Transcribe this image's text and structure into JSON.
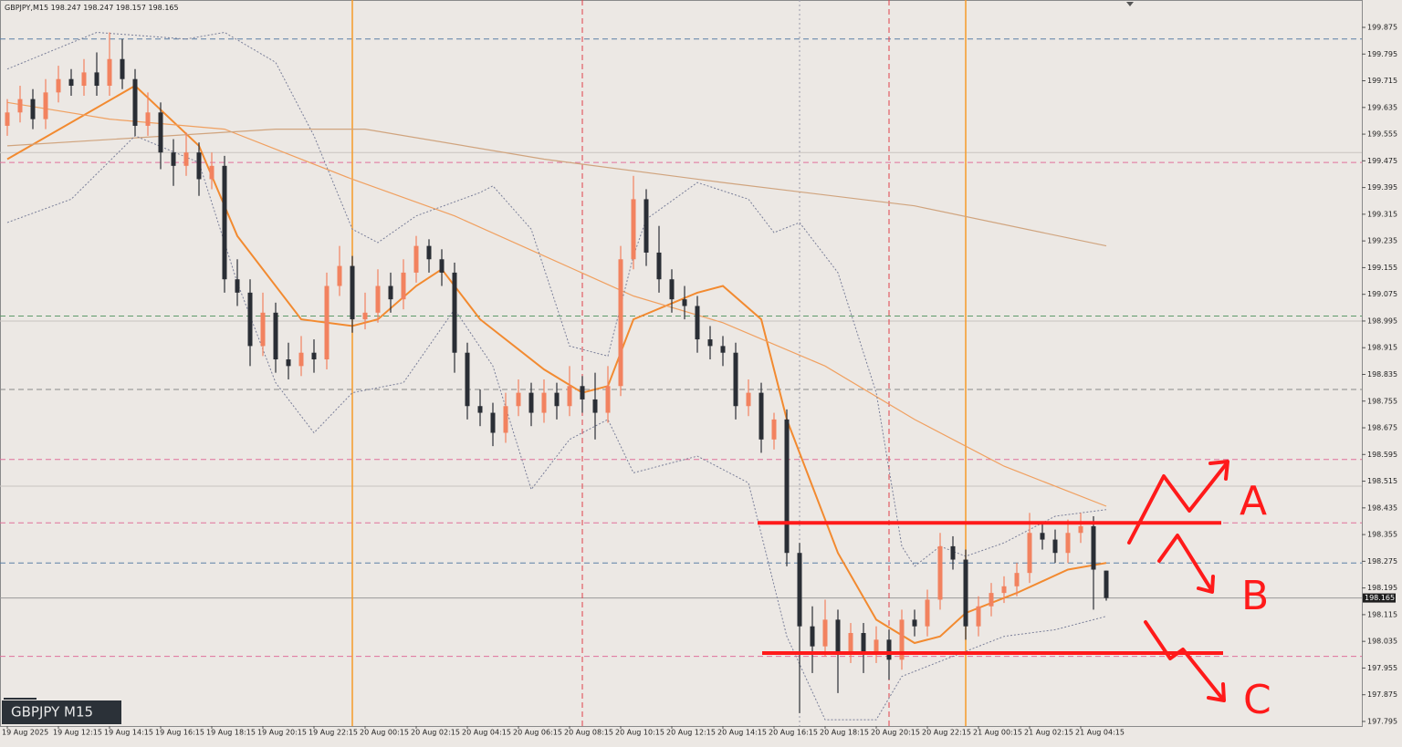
{
  "chart_data": {
    "type": "candlestick",
    "symbol": "GBPJPY,M15",
    "label": "GBPJPY M15",
    "ylim": [
      197.784,
      199.957
    ],
    "yticks": [
      197.795,
      197.875,
      197.955,
      198.035,
      198.115,
      198.195,
      198.275,
      198.355,
      198.435,
      198.515,
      198.595,
      198.675,
      198.755,
      198.835,
      198.915,
      198.995,
      199.075,
      199.155,
      199.235,
      199.315,
      199.395,
      199.475,
      199.555,
      199.635,
      199.715,
      199.795,
      199.875
    ],
    "x": [
      "19 Aug 2025",
      "19 Aug 12:15",
      "19 Aug 14:15",
      "19 Aug 16:15",
      "19 Aug 18:15",
      "19 Aug 20:15",
      "19 Aug 22:15",
      "20 Aug 00:15",
      "20 Aug 02:15",
      "20 Aug 04:15",
      "20 Aug 06:15",
      "20 Aug 08:15",
      "20 Aug 10:15",
      "20 Aug 12:15",
      "20 Aug 14:15",
      "20 Aug 16:15",
      "20 Aug 18:15",
      "20 Aug 20:15",
      "20 Aug 22:15",
      "21 Aug 00:15",
      "21 Aug 02:15",
      "21 Aug 04:15"
    ],
    "up_color": "#f2825f",
    "down_color": "#2a2e35",
    "candles": [
      [
        199.58,
        199.66,
        199.55,
        199.62
      ],
      [
        199.62,
        199.7,
        199.59,
        199.66
      ],
      [
        199.66,
        199.69,
        199.57,
        199.6
      ],
      [
        199.6,
        199.72,
        199.57,
        199.68
      ],
      [
        199.68,
        199.76,
        199.65,
        199.72
      ],
      [
        199.72,
        199.75,
        199.67,
        199.7
      ],
      [
        199.7,
        199.78,
        199.67,
        199.74
      ],
      [
        199.74,
        199.8,
        199.67,
        199.7
      ],
      [
        199.7,
        199.86,
        199.67,
        199.78
      ],
      [
        199.78,
        199.84,
        199.69,
        199.72
      ],
      [
        199.72,
        199.75,
        199.55,
        199.58
      ],
      [
        199.58,
        199.68,
        199.55,
        199.62
      ],
      [
        199.62,
        199.65,
        199.45,
        199.5
      ],
      [
        199.5,
        199.54,
        199.4,
        199.46
      ],
      [
        199.46,
        199.56,
        199.43,
        199.5
      ],
      [
        199.5,
        199.53,
        199.37,
        199.42
      ],
      [
        199.42,
        199.5,
        199.39,
        199.46
      ],
      [
        199.46,
        199.49,
        199.08,
        199.12
      ],
      [
        199.12,
        199.18,
        199.04,
        199.08
      ],
      [
        199.08,
        199.12,
        198.86,
        198.92
      ],
      [
        198.92,
        199.08,
        198.89,
        199.02
      ],
      [
        199.02,
        199.05,
        198.84,
        198.88
      ],
      [
        198.88,
        198.93,
        198.82,
        198.86
      ],
      [
        198.86,
        198.95,
        198.83,
        198.9
      ],
      [
        198.9,
        198.94,
        198.84,
        198.88
      ],
      [
        198.88,
        199.14,
        198.85,
        199.1
      ],
      [
        199.1,
        199.22,
        199.07,
        199.16
      ],
      [
        199.16,
        199.19,
        198.96,
        199.0
      ],
      [
        199.0,
        199.08,
        198.97,
        199.02
      ],
      [
        199.02,
        199.15,
        198.99,
        199.1
      ],
      [
        199.1,
        199.14,
        199.02,
        199.06
      ],
      [
        199.06,
        199.18,
        199.03,
        199.14
      ],
      [
        199.14,
        199.25,
        199.11,
        199.22
      ],
      [
        199.22,
        199.24,
        199.14,
        199.18
      ],
      [
        199.18,
        199.21,
        199.1,
        199.14
      ],
      [
        199.14,
        199.17,
        198.84,
        198.9
      ],
      [
        198.9,
        198.93,
        198.7,
        198.74
      ],
      [
        198.74,
        198.79,
        198.68,
        198.72
      ],
      [
        198.72,
        198.75,
        198.62,
        198.66
      ],
      [
        198.66,
        198.78,
        198.63,
        198.74
      ],
      [
        198.74,
        198.82,
        198.71,
        198.78
      ],
      [
        198.78,
        198.81,
        198.68,
        198.72
      ],
      [
        198.72,
        198.82,
        198.69,
        198.78
      ],
      [
        198.78,
        198.81,
        198.7,
        198.74
      ],
      [
        198.74,
        198.86,
        198.71,
        198.8
      ],
      [
        198.8,
        198.83,
        198.72,
        198.76
      ],
      [
        198.76,
        198.84,
        198.64,
        198.72
      ],
      [
        198.72,
        198.86,
        198.69,
        198.8
      ],
      [
        198.8,
        199.22,
        198.77,
        199.18
      ],
      [
        199.18,
        199.43,
        199.15,
        199.36
      ],
      [
        199.36,
        199.39,
        199.16,
        199.2
      ],
      [
        199.2,
        199.28,
        199.08,
        199.12
      ],
      [
        199.12,
        199.15,
        199.02,
        199.06
      ],
      [
        199.06,
        199.1,
        199.0,
        199.04
      ],
      [
        199.04,
        199.07,
        198.9,
        198.94
      ],
      [
        198.94,
        198.98,
        198.88,
        198.92
      ],
      [
        198.92,
        198.95,
        198.86,
        198.9
      ],
      [
        198.9,
        198.93,
        198.7,
        198.74
      ],
      [
        198.74,
        198.82,
        198.71,
        198.78
      ],
      [
        198.78,
        198.81,
        198.6,
        198.64
      ],
      [
        198.64,
        198.72,
        198.61,
        198.7
      ],
      [
        198.7,
        198.73,
        198.26,
        198.3
      ],
      [
        198.3,
        198.33,
        197.82,
        198.08
      ],
      [
        198.08,
        198.14,
        197.94,
        198.02
      ],
      [
        198.02,
        198.16,
        197.99,
        198.1
      ],
      [
        198.1,
        198.13,
        197.88,
        198.0
      ],
      [
        198.0,
        198.09,
        197.97,
        198.06
      ],
      [
        198.06,
        198.09,
        197.94,
        198.0
      ],
      [
        198.0,
        198.08,
        197.97,
        198.04
      ],
      [
        198.04,
        198.07,
        197.92,
        197.98
      ],
      [
        197.98,
        198.13,
        197.95,
        198.1
      ],
      [
        198.1,
        198.13,
        198.05,
        198.08
      ],
      [
        198.08,
        198.19,
        198.05,
        198.16
      ],
      [
        198.16,
        198.36,
        198.13,
        198.32
      ],
      [
        198.32,
        198.35,
        198.25,
        198.28
      ],
      [
        198.28,
        198.31,
        198.04,
        198.08
      ],
      [
        198.08,
        198.17,
        198.05,
        198.14
      ],
      [
        198.14,
        198.21,
        198.11,
        198.18
      ],
      [
        198.18,
        198.23,
        198.15,
        198.2
      ],
      [
        198.2,
        198.27,
        198.17,
        198.24
      ],
      [
        198.24,
        198.42,
        198.21,
        198.36
      ],
      [
        198.36,
        198.39,
        198.31,
        198.34
      ],
      [
        198.34,
        198.37,
        198.27,
        198.3
      ],
      [
        198.3,
        198.4,
        198.27,
        198.36
      ],
      [
        198.36,
        198.42,
        198.33,
        198.38
      ],
      [
        198.38,
        198.41,
        198.13,
        198.25
      ],
      [
        198.247,
        198.247,
        198.157,
        198.165
      ]
    ],
    "lines": [
      {
        "color": "#f28a30",
        "width": 2,
        "dotted": false,
        "x": [
          0,
          10,
          15,
          18,
          23,
          27,
          29,
          32,
          34,
          37,
          42,
          45,
          47,
          49,
          54,
          56,
          59,
          61,
          65,
          68,
          71,
          73,
          75,
          79,
          83,
          86
        ],
        "values": [
          199.48,
          199.7,
          199.52,
          199.25,
          199.0,
          198.98,
          199.0,
          199.1,
          199.15,
          199.0,
          198.85,
          198.78,
          198.8,
          199.0,
          199.08,
          199.1,
          199.0,
          198.7,
          198.3,
          198.1,
          198.03,
          198.05,
          198.12,
          198.18,
          198.25,
          198.27
        ]
      },
      {
        "color": "#f0a060",
        "width": 1.2,
        "dotted": false,
        "x": [
          0,
          8,
          17,
          27,
          35,
          42,
          49,
          56,
          64,
          71,
          78,
          86
        ],
        "values": [
          199.65,
          199.6,
          199.57,
          199.42,
          199.31,
          199.19,
          199.07,
          198.99,
          198.86,
          198.7,
          198.56,
          198.44
        ]
      },
      {
        "color": "#d0a47e",
        "width": 1.2,
        "dotted": false,
        "x": [
          0,
          21,
          28,
          42,
          56,
          71,
          86
        ],
        "values": [
          199.52,
          199.57,
          199.57,
          199.48,
          199.41,
          199.34,
          199.22
        ]
      },
      {
        "color": "#7a7f99",
        "width": 1,
        "dotted": true,
        "x": [
          0,
          7,
          14,
          17,
          21,
          24,
          27,
          29,
          32,
          37,
          38,
          41,
          44,
          47,
          49,
          50,
          54,
          58,
          60,
          62,
          65,
          68,
          70,
          71,
          73,
          75,
          78,
          82,
          86
        ],
        "values": [
          199.75,
          199.86,
          199.84,
          199.86,
          199.77,
          199.55,
          199.27,
          199.23,
          199.31,
          199.38,
          199.4,
          199.27,
          198.92,
          198.89,
          199.19,
          199.3,
          199.41,
          199.36,
          199.26,
          199.29,
          199.14,
          198.78,
          198.32,
          198.26,
          198.32,
          198.29,
          198.33,
          198.41,
          198.43
        ]
      },
      {
        "color": "#7a7f99",
        "width": 1,
        "dotted": true,
        "x": [
          0,
          5,
          10,
          15,
          18,
          21,
          24,
          27,
          31,
          35,
          38,
          41,
          44,
          47,
          49,
          54,
          58,
          61,
          64,
          68,
          70,
          74,
          78,
          82,
          86
        ],
        "values": [
          199.29,
          199.36,
          199.55,
          199.47,
          199.11,
          198.81,
          198.66,
          198.78,
          198.81,
          199.03,
          198.86,
          198.49,
          198.64,
          198.7,
          198.54,
          198.59,
          198.51,
          198.05,
          197.8,
          197.8,
          197.93,
          197.99,
          198.05,
          198.07,
          198.11
        ]
      }
    ],
    "levels": [
      {
        "value": 199.84,
        "color": "#5b7fa6",
        "dashed": true
      },
      {
        "value": 199.5,
        "color": "#c9c4c0",
        "dashed": false
      },
      {
        "value": 199.47,
        "color": "#e0709a",
        "dashed": true
      },
      {
        "value": 199.01,
        "color": "#5d9a6a",
        "dashed": true
      },
      {
        "value": 198.995,
        "color": "#c9c4c0",
        "dashed": false
      },
      {
        "value": 198.79,
        "color": "#8a8a8a",
        "dashed": true
      },
      {
        "value": 198.58,
        "color": "#e0709a",
        "dashed": true
      },
      {
        "value": 198.5,
        "color": "#c9c4c0",
        "dashed": false
      },
      {
        "value": 198.39,
        "color": "#e0709a",
        "dashed": true
      },
      {
        "value": 198.27,
        "color": "#5b7fa6",
        "dashed": true
      },
      {
        "value": 198.165,
        "color": "#9a9a9a",
        "dashed": false
      },
      {
        "value": 197.99,
        "color": "#e0709a",
        "dashed": true
      }
    ],
    "vlines": [
      {
        "index": 27,
        "color": "#f59a2a",
        "style": "solid"
      },
      {
        "index": 45,
        "color": "#e0404a",
        "style": "dashed"
      },
      {
        "index": 62,
        "color": "#9a9aaa",
        "style": "dotted"
      },
      {
        "index": 69,
        "color": "#e0404a",
        "style": "dashed"
      },
      {
        "index": 75,
        "color": "#f59a2a",
        "style": "solid"
      }
    ],
    "range_lines": [
      198.39,
      198.0
    ],
    "annotations": [
      "A",
      "B",
      "C"
    ]
  }
}
